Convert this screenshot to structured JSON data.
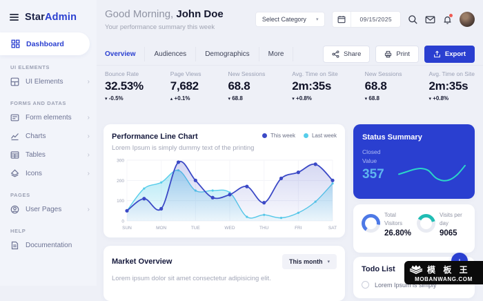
{
  "colors": {
    "accent": "#2a3fd0",
    "red": "#e9605a",
    "teal": "#21bdb4",
    "cyan": "#56cdea",
    "dark_series": "#3b49c6",
    "status_line": "#2bd6c8",
    "donut_blue": "#4d79e6"
  },
  "sidebar": {
    "brand": {
      "star": "Star",
      "admin": "Admin"
    },
    "active_item": "Dashboard",
    "sections": [
      {
        "label": "UI ELEMENTS",
        "items": [
          {
            "label": "UI Elements"
          }
        ]
      },
      {
        "label": "FORMS AND DATAS",
        "items": [
          {
            "label": "Form elements"
          },
          {
            "label": "Charts"
          },
          {
            "label": "Tables"
          },
          {
            "label": "Icons"
          }
        ]
      },
      {
        "label": "PAGES",
        "items": [
          {
            "label": "User Pages"
          }
        ]
      },
      {
        "label": "HELP",
        "items": [
          {
            "label": "Documentation"
          }
        ]
      }
    ],
    "chevron": "›"
  },
  "header": {
    "greeting": "Good Morning,",
    "name": "John Doe",
    "subtitle": "Your performance summary this week",
    "category_select": "Select Category",
    "date": "09/15/2025"
  },
  "toolbar": {
    "tabs": [
      {
        "label": "Overview"
      },
      {
        "label": "Audiences"
      },
      {
        "label": "Demographics"
      },
      {
        "label": "More"
      }
    ],
    "share_label": "Share",
    "print_label": "Print",
    "export_label": "Export"
  },
  "stats": [
    {
      "label": "Bounce Rate",
      "value": "32.53%",
      "arrow": "▾",
      "delta": "-0.5%",
      "tone": "down"
    },
    {
      "label": "Page Views",
      "value": "7,682",
      "arrow": "▴",
      "delta": "+0.1%",
      "tone": "up"
    },
    {
      "label": "New Sessions",
      "value": "68.8",
      "arrow": "▾",
      "delta": "68.8",
      "tone": "down"
    },
    {
      "label": "Avg. Time on Site",
      "value": "2m:35s",
      "arrow": "▾",
      "delta": "+0.8%",
      "tone": "up"
    },
    {
      "label": "New Sessions",
      "value": "68.8",
      "arrow": "▾",
      "delta": "68.8",
      "tone": "down"
    },
    {
      "label": "Avg. Time on Site",
      "value": "2m:35s",
      "arrow": "▾",
      "delta": "+0.8%",
      "tone": "up"
    }
  ],
  "cards": {
    "performance": {
      "title": "Performance Line Chart",
      "subtitle": "Lorem Ipsum is simply dummy text of the printing"
    },
    "status": {
      "title": "Status Summary",
      "label_line1": "Closed",
      "label_line2": "Value",
      "value": "357"
    },
    "visitors": [
      {
        "label": "Total Visitors",
        "value": "26.80%"
      },
      {
        "label": "Visits per day",
        "value": "9065"
      }
    ],
    "market": {
      "title": "Market Overview",
      "subtitle": "Lorem ipsum dolor sit amet consectetur adipisicing elit.",
      "range_select": "This month"
    },
    "todo": {
      "title": "Todo List",
      "add_label": "+",
      "items": [
        {
          "text": "Lorem Ipsum is simply"
        }
      ]
    }
  },
  "chart_data": [
    {
      "type": "line",
      "title": "Performance Line Chart",
      "x": [
        "SUN",
        "MON",
        "TUE",
        "WED",
        "THU",
        "FRI",
        "SAT"
      ],
      "series": [
        {
          "name": "This week",
          "color": "#3b49c6",
          "values": [
            50,
            110,
            60,
            290,
            200,
            115,
            130,
            170,
            90,
            210,
            240,
            280,
            200
          ]
        },
        {
          "name": "Last week",
          "color": "#56cdea",
          "values": [
            50,
            160,
            190,
            250,
            150,
            150,
            140,
            20,
            30,
            15,
            40,
            95,
            185
          ]
        }
      ],
      "ylim": [
        0,
        300
      ],
      "yticks": [
        0,
        100,
        200,
        300
      ],
      "grid": true,
      "area": true,
      "legend_position": "top-right"
    },
    {
      "type": "line",
      "title": "Status Summary sparkline",
      "series": [
        {
          "name": "Closed Value",
          "color": "#2bd6c8",
          "values": [
            42,
            50,
            58,
            62,
            55,
            30,
            20,
            24,
            42,
            72
          ]
        }
      ],
      "ylim": [
        0,
        100
      ],
      "grid": false
    },
    {
      "type": "donut",
      "label": "Total Visitors",
      "display": "26.80%",
      "percent_filled": 68,
      "start_angle": 215,
      "color": "#4d79e6",
      "track": "#e9ebf2"
    },
    {
      "type": "donut",
      "label": "Visits per day",
      "display": "9065",
      "percent_filled": 38,
      "start_angle": 300,
      "color": "#21bdb4",
      "track": "#e9ebf2"
    }
  ],
  "watermark": {
    "cn": "模 板 王",
    "en": "MOBANWANG.COM"
  }
}
